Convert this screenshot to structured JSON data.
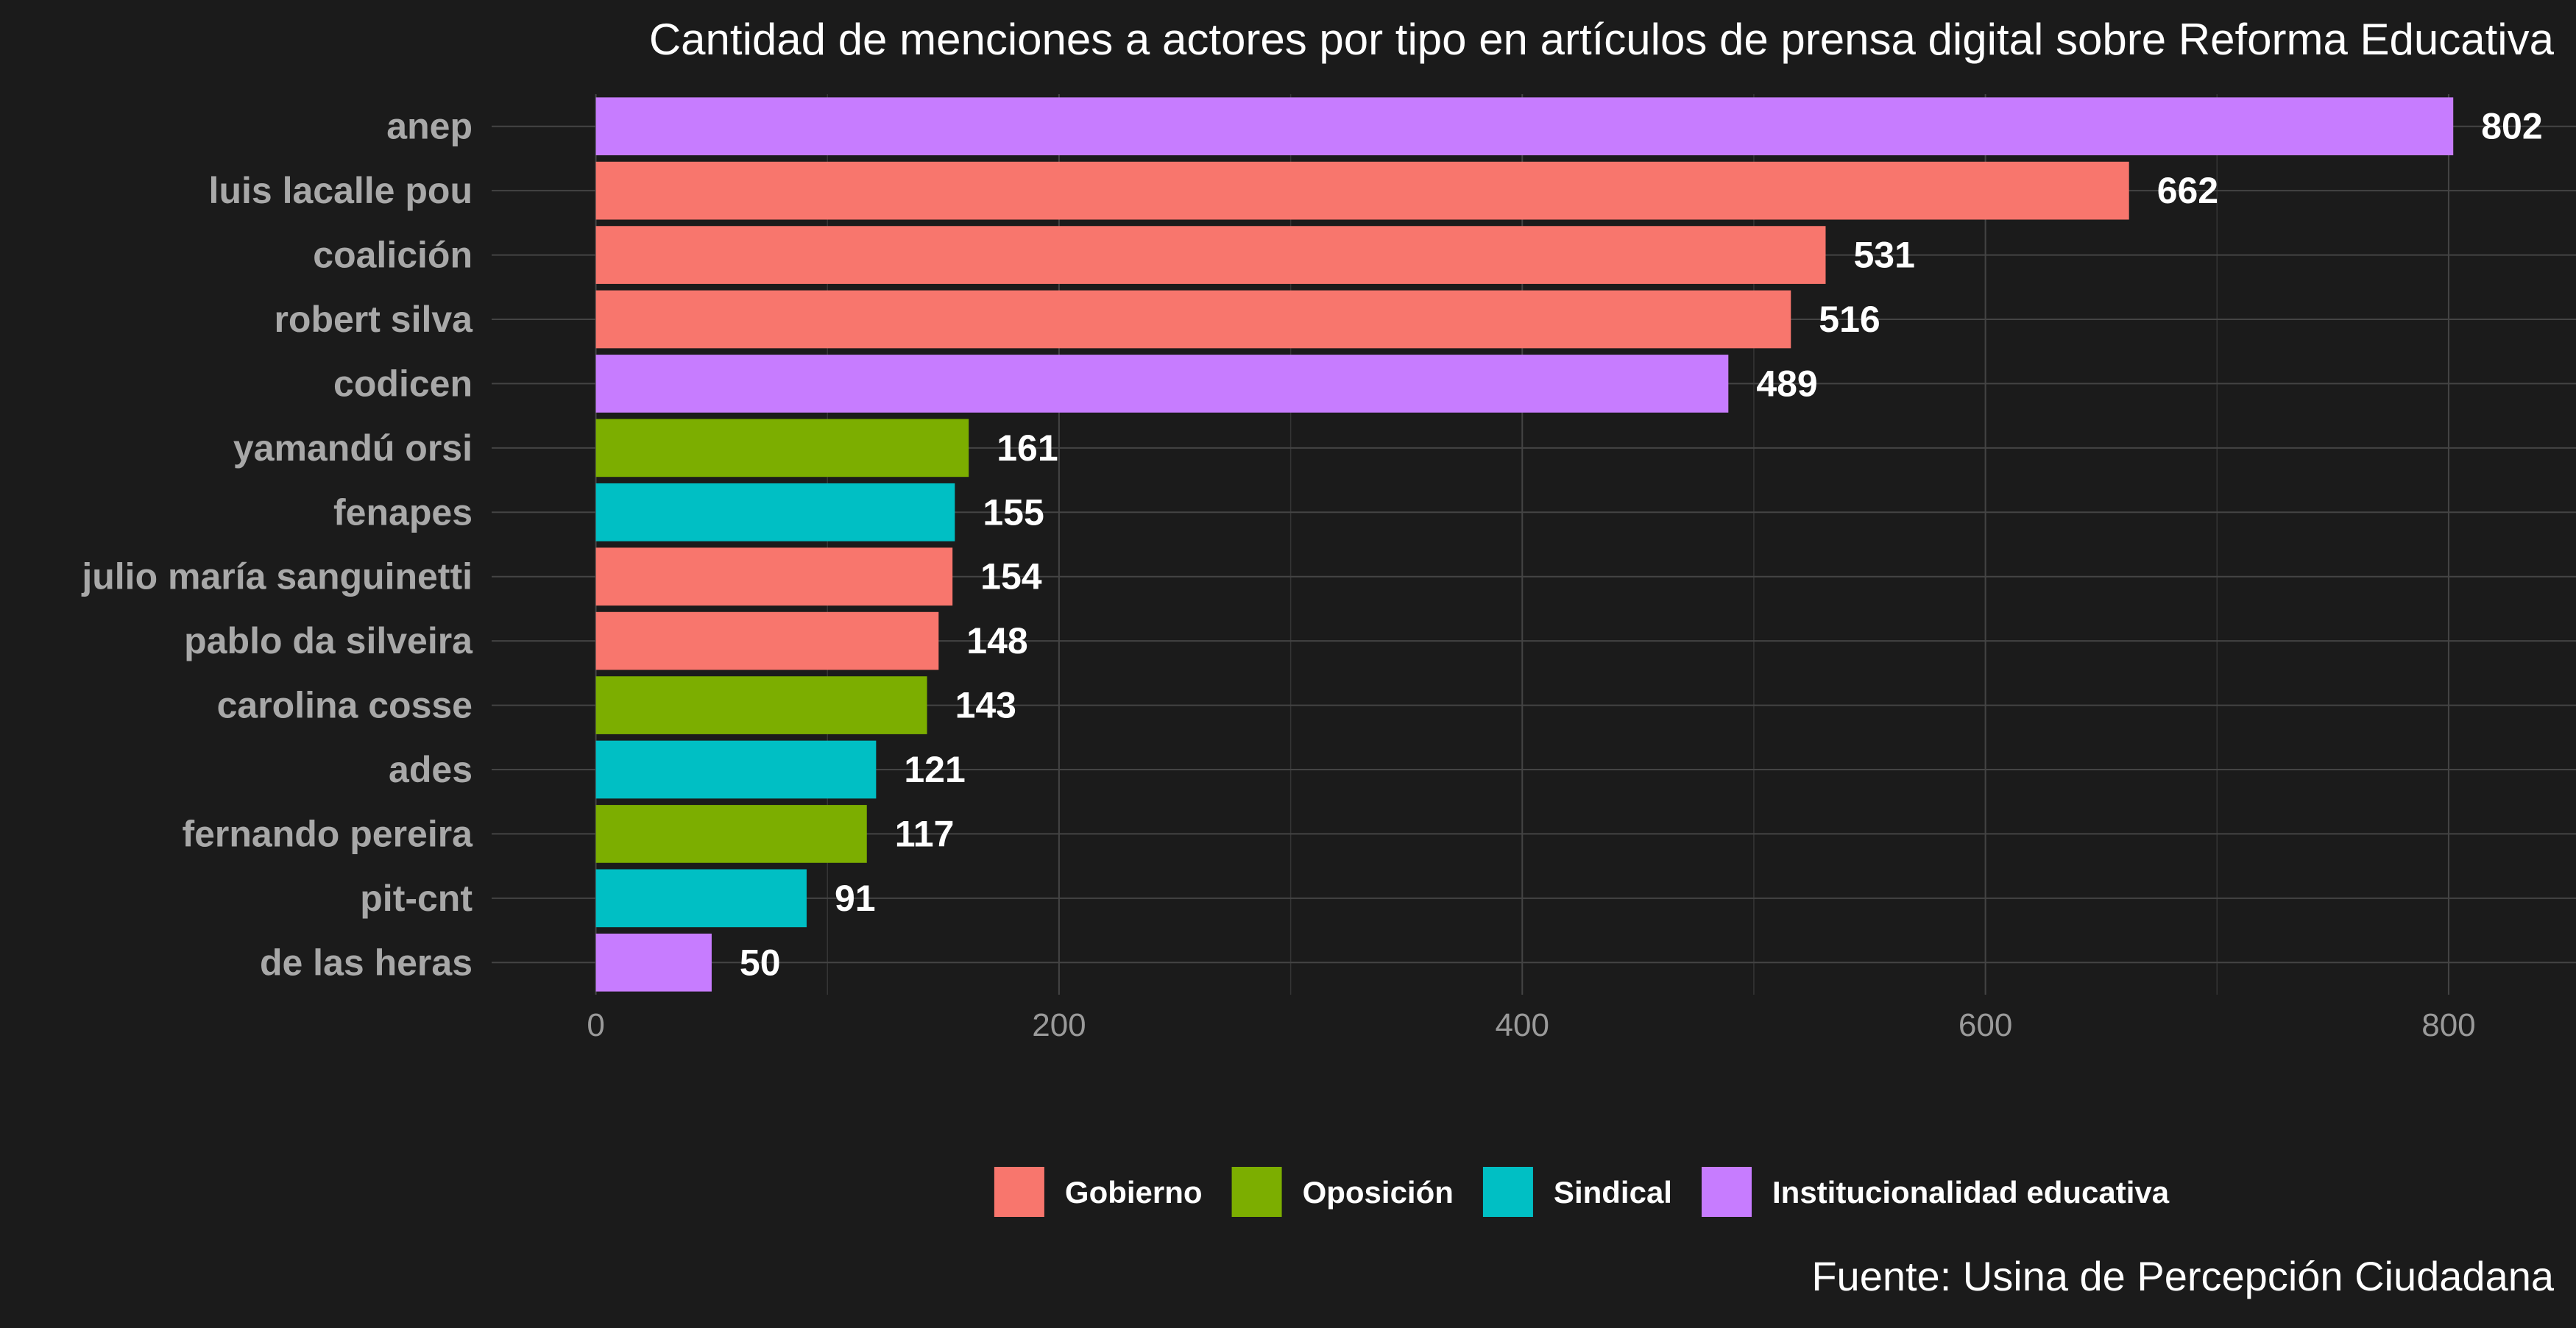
{
  "chart_data": {
    "type": "bar",
    "orientation": "horizontal",
    "title": "Cantidad de menciones a actores por tipo en artículos de prensa digital sobre Reforma Educativa",
    "caption": "Fuente: Usina de Percepción Ciudadana",
    "categories": [
      "anep",
      "luis lacalle pou",
      "coalición",
      "robert silva",
      "codicen",
      "yamandú orsi",
      "fenapes",
      "julio maría sanguinetti",
      "pablo da silveira",
      "carolina cosse",
      "ades",
      "fernando pereira",
      "pit-cnt",
      "de las heras"
    ],
    "values": [
      802,
      662,
      531,
      516,
      489,
      161,
      155,
      154,
      148,
      143,
      121,
      117,
      91,
      50
    ],
    "groups": [
      "Institucionalidad educativa",
      "Gobierno",
      "Gobierno",
      "Gobierno",
      "Institucionalidad educativa",
      "Oposición",
      "Sindical",
      "Gobierno",
      "Gobierno",
      "Oposición",
      "Sindical",
      "Oposición",
      "Sindical",
      "Institucionalidad educativa"
    ],
    "legend": [
      {
        "name": "Gobierno",
        "color": "#f8766d"
      },
      {
        "name": "Oposición",
        "color": "#7cae00"
      },
      {
        "name": "Sindical",
        "color": "#00bfc4"
      },
      {
        "name": "Institucionalidad educativa",
        "color": "#c77cff"
      }
    ],
    "legend_position": "bottom",
    "x_ticks": [
      0,
      200,
      400,
      600,
      800
    ],
    "xlim": [
      -45,
      855
    ],
    "grid": true,
    "background": "#1b1b1b"
  }
}
